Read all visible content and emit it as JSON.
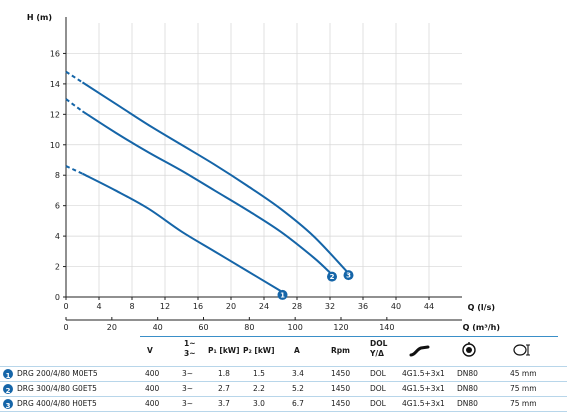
{
  "chart_data": {
    "type": "line",
    "ylabel": "H (m)",
    "xlabel": "Q (l/s)",
    "xlabel2": "Q (m³/h)",
    "xlim": [
      0,
      48
    ],
    "ylim": [
      0,
      18
    ],
    "xticks": [
      0,
      4,
      8,
      12,
      16,
      20,
      24,
      28,
      32,
      36,
      40,
      44
    ],
    "yticks": [
      0,
      2,
      4,
      6,
      8,
      10,
      12,
      14,
      16
    ],
    "x2ticks": [
      0,
      20,
      40,
      60,
      80,
      100,
      120,
      140
    ],
    "grid": true,
    "series": [
      {
        "marker": "1",
        "dashed": [
          [
            0,
            8.6
          ],
          [
            2,
            8.1
          ]
        ],
        "points": [
          [
            2,
            8.1
          ],
          [
            6,
            7.0
          ],
          [
            10,
            5.8
          ],
          [
            14,
            4.3
          ],
          [
            18,
            3.0
          ],
          [
            22,
            1.7
          ],
          [
            26,
            0.4
          ]
        ]
      },
      {
        "marker": "2",
        "dashed": [
          [
            0,
            13.0
          ],
          [
            2,
            12.2
          ]
        ],
        "points": [
          [
            2,
            12.2
          ],
          [
            6,
            10.8
          ],
          [
            10,
            9.5
          ],
          [
            14,
            8.3
          ],
          [
            18,
            7.0
          ],
          [
            22,
            5.7
          ],
          [
            26,
            4.3
          ],
          [
            30,
            2.6
          ],
          [
            32,
            1.6
          ]
        ]
      },
      {
        "marker": "3",
        "dashed": [
          [
            0,
            14.8
          ],
          [
            2,
            14.1
          ]
        ],
        "points": [
          [
            2,
            14.1
          ],
          [
            6,
            12.7
          ],
          [
            10,
            11.3
          ],
          [
            14,
            10.0
          ],
          [
            18,
            8.7
          ],
          [
            22,
            7.3
          ],
          [
            26,
            5.8
          ],
          [
            30,
            4.0
          ],
          [
            34,
            1.7
          ]
        ]
      }
    ]
  },
  "table": {
    "headers": {
      "v": "V",
      "phase_top": "1~",
      "phase_bottom": "3~",
      "p1": "P₁ [kW]",
      "p2": "P₂ [kW]",
      "a": "A",
      "rpm": "Rpm",
      "dol_top": "DOL",
      "dol_bottom": "Y/Δ"
    },
    "rows": [
      {
        "marker": "1",
        "model": "DRG 200/4/80 M0ET5",
        "v": "400",
        "phase": "3~",
        "p1": "1.8",
        "p2": "1.5",
        "a": "3.4",
        "rpm": "1450",
        "start": "DOL",
        "cable": "4G1.5+3x1",
        "outlet": "DN80",
        "passage": "45 mm"
      },
      {
        "marker": "2",
        "model": "DRG 300/4/80 G0ET5",
        "v": "400",
        "phase": "3~",
        "p1": "2.7",
        "p2": "2.2",
        "a": "5.2",
        "rpm": "1450",
        "start": "DOL",
        "cable": "4G1.5+3x1",
        "outlet": "DN80",
        "passage": "75 mm"
      },
      {
        "marker": "3",
        "model": "DRG 400/4/80 H0ET5",
        "v": "400",
        "phase": "3~",
        "p1": "3.7",
        "p2": "3.0",
        "a": "6.7",
        "rpm": "1450",
        "start": "DOL",
        "cable": "4G1.5+3x1",
        "outlet": "DN80",
        "passage": "75 mm"
      }
    ]
  },
  "icons": {
    "cable": "cable-icon",
    "outlet": "pump-outlet-icon",
    "passage": "solid-passage-icon"
  },
  "colors": {
    "curve": "#1565a8",
    "separator": "#3a8fc8"
  }
}
